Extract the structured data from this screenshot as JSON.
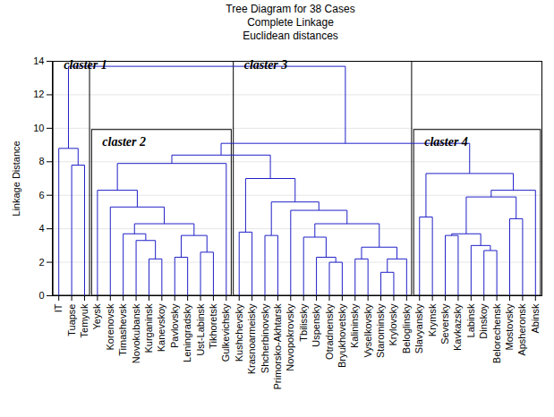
{
  "chart_data": {
    "type": "dendrogram",
    "title": "Tree Diagram for 38 Cases",
    "subtitle": [
      "Complete Linkage",
      "Euclidean distances"
    ],
    "y_label": "Linkage Distance",
    "ylim": [
      0,
      14
    ],
    "yticks": [
      0,
      2,
      4,
      6,
      8,
      10,
      12,
      14
    ],
    "grid": true,
    "color": "#2020c8",
    "tree": {
      "height": 13.7,
      "children": [
        {
          "height": 8.8,
          "children": [
            "IT",
            {
              "height": 7.8,
              "children": [
                "Tuapse",
                "Temyuk"
              ]
            }
          ]
        },
        {
          "height": 9.1,
          "children": [
            {
              "height": 8.4,
              "children": [
                {
                  "height": 7.9,
                  "children": [
                    {
                      "height": 6.3,
                      "children": [
                        "Yeysk",
                        {
                          "height": 5.3,
                          "children": [
                            "Korenovsk",
                            {
                              "height": 4.3,
                              "children": [
                                {
                                  "height": 3.7,
                                  "children": [
                                    "Timashevsk",
                                    {
                                      "height": 3.3,
                                      "children": [
                                        "Novokubansk",
                                        {
                                          "height": 2.2,
                                          "children": [
                                            "Kurganinsk",
                                            "Kanevskoy"
                                          ]
                                        }
                                      ]
                                    }
                                  ]
                                },
                                {
                                  "height": 3.6,
                                  "children": [
                                    {
                                      "height": 2.3,
                                      "children": [
                                        "Pavlovsky",
                                        "Leningradsky"
                                      ]
                                    },
                                    {
                                      "height": 2.6,
                                      "children": [
                                        "Ust-Labinsk",
                                        "Tikhoretsk"
                                      ]
                                    }
                                  ]
                                }
                              ]
                            }
                          ]
                        }
                      ]
                    },
                    "Gulkevichsky"
                  ]
                },
                {
                  "height": 7.0,
                  "children": [
                    {
                      "height": 3.8,
                      "children": [
                        "Kushchevsky",
                        "Krasnoarmeisky"
                      ]
                    },
                    {
                      "height": 5.6,
                      "children": [
                        {
                          "height": 3.6,
                          "children": [
                            "Shcherbinovsky",
                            "Primorsko-Akhtarsk"
                          ]
                        },
                        {
                          "height": 5.1,
                          "children": [
                            "Novopokrovsky",
                            {
                              "height": 4.3,
                              "children": [
                                {
                                  "height": 3.5,
                                  "children": [
                                    "Tbilissky",
                                    {
                                      "height": 2.3,
                                      "children": [
                                        "Uspensky",
                                        {
                                          "height": 2.0,
                                          "children": [
                                            "Otradnensky",
                                            "Bryukhovetsky"
                                          ]
                                        }
                                      ]
                                    }
                                  ]
                                },
                                {
                                  "height": 2.9,
                                  "children": [
                                    {
                                      "height": 2.2,
                                      "children": [
                                        "Kalininsky",
                                        "Vyselkovsky"
                                      ]
                                    },
                                    {
                                      "height": 2.2,
                                      "children": [
                                        {
                                          "height": 1.4,
                                          "children": [
                                            "Starominsky",
                                            "Krylovsky"
                                          ]
                                        },
                                        "Beloglinsky"
                                      ]
                                    }
                                  ]
                                }
                              ]
                            }
                          ]
                        }
                      ]
                    }
                  ]
                }
              ]
            },
            {
              "height": 7.3,
              "children": [
                {
                  "height": 4.7,
                  "children": [
                    "Slavyansky",
                    "Krymsk"
                  ]
                },
                {
                  "height": 6.3,
                  "children": [
                    {
                      "height": 5.9,
                      "children": [
                        {
                          "height": 3.7,
                          "children": [
                            {
                              "height": 3.6,
                              "children": [
                                "Seversky",
                                "Kavkazsky"
                              ]
                            },
                            {
                              "height": 3.0,
                              "children": [
                                "Labinsk",
                                {
                                  "height": 2.7,
                                  "children": [
                                    "Dinskoy",
                                    "Belorechensk"
                                  ]
                                }
                              ]
                            }
                          ]
                        },
                        {
                          "height": 4.6,
                          "children": [
                            "Mostovsky",
                            "Apsheronsk"
                          ]
                        }
                      ]
                    },
                    "Abinsk"
                  ]
                }
              ]
            }
          ]
        }
      ]
    },
    "clusters": [
      {
        "label": "claster 1",
        "from": "IT",
        "to": "Temyuk"
      },
      {
        "label": "claster 2",
        "from": "Yeysk",
        "to": "Gulkevichsky"
      },
      {
        "label": "claster 3",
        "from": "Kushchevsky",
        "to": "Beloglinsky"
      },
      {
        "label": "claster 4",
        "from": "Slavyansky",
        "to": "Abinsk"
      }
    ]
  }
}
